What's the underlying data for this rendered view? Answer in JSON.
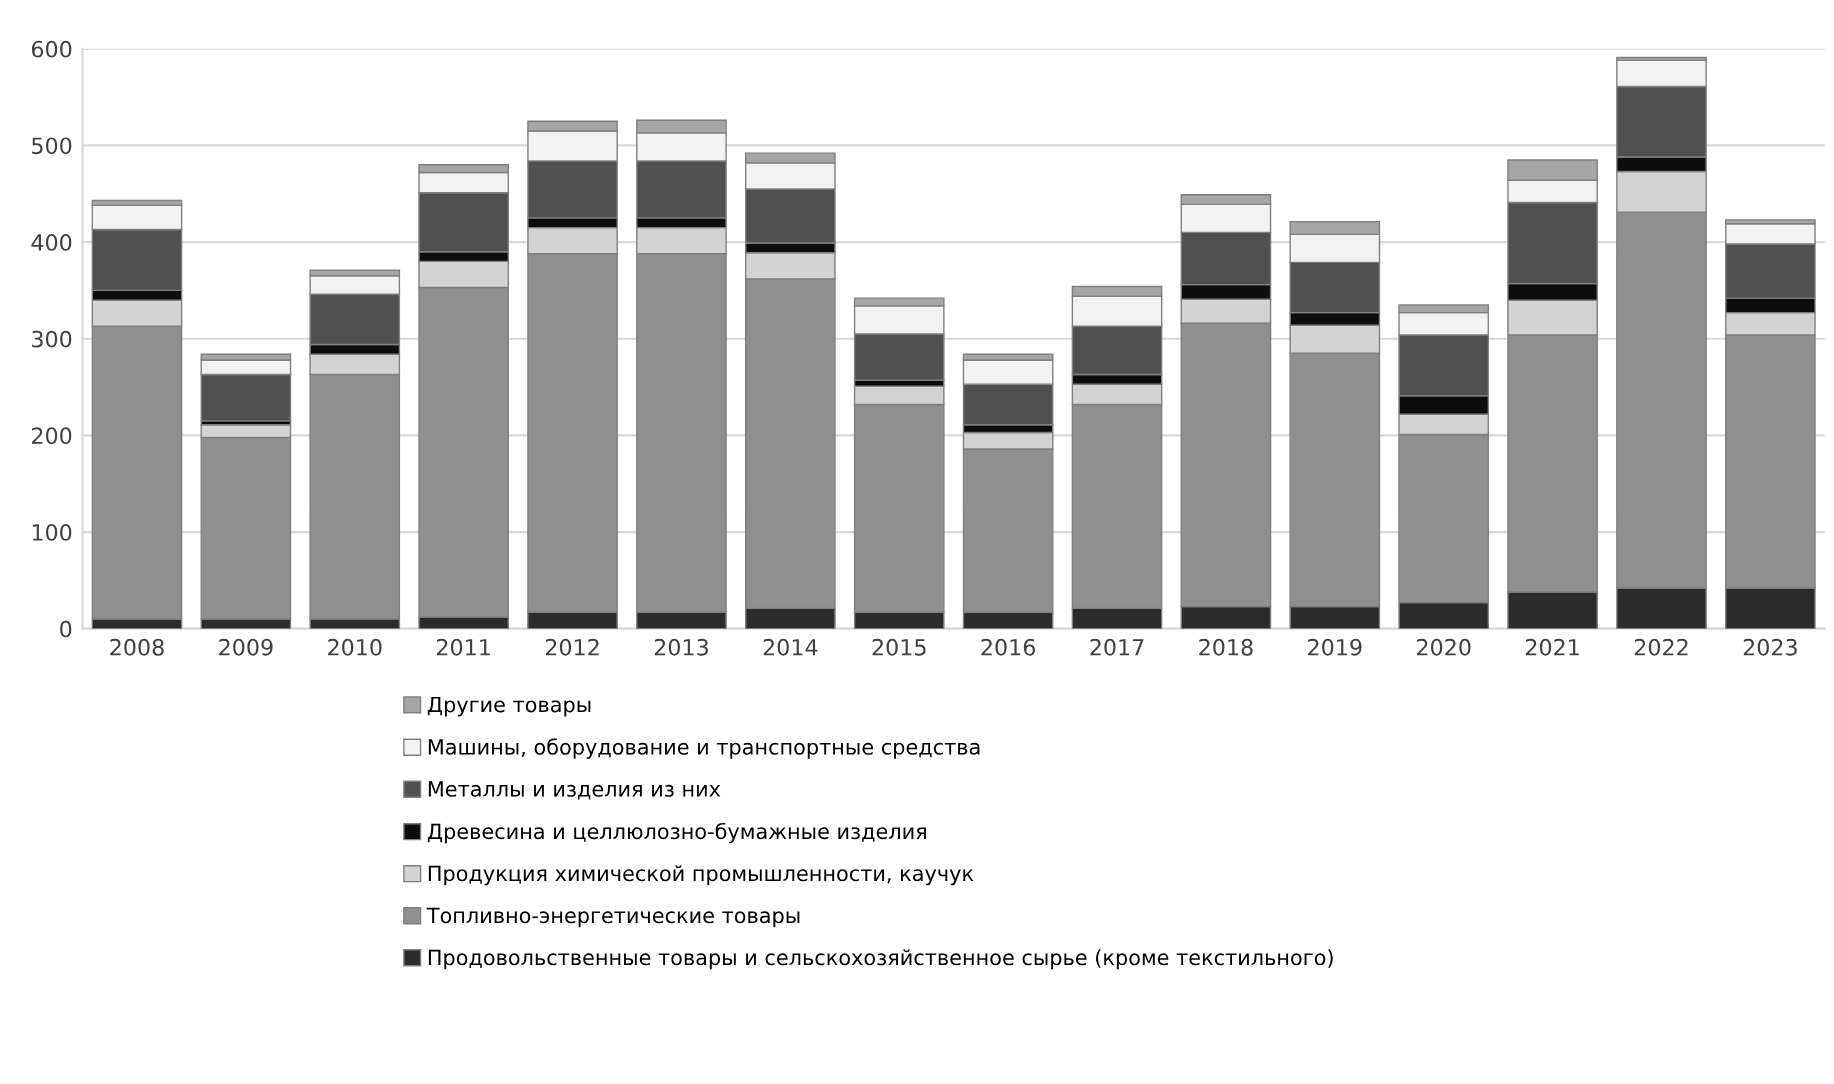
{
  "chart_data": {
    "type": "bar",
    "stacked": true,
    "categories": [
      "2008",
      "2009",
      "2010",
      "2011",
      "2012",
      "2013",
      "2014",
      "2015",
      "2016",
      "2017",
      "2018",
      "2019",
      "2020",
      "2021",
      "2022",
      "2023"
    ],
    "series": [
      {
        "name": "Продовольственные товары и сельскохозяйственное сырье (кроме текстильного)",
        "color": "#2b2b2b",
        "values": [
          10,
          10,
          10,
          12,
          17,
          17,
          21,
          17,
          17,
          21,
          23,
          23,
          27,
          38,
          42,
          42
        ]
      },
      {
        "name": "Топливно-энергетические товары",
        "color": "#8f8f8f",
        "values": [
          303,
          188,
          253,
          341,
          371,
          371,
          341,
          215,
          169,
          211,
          293,
          262,
          174,
          266,
          389,
          262
        ]
      },
      {
        "name": "Продукция химической промышленности, каучук",
        "color": "#d3d3d3",
        "values": [
          27,
          13,
          21,
          27,
          27,
          27,
          27,
          19,
          17,
          21,
          25,
          29,
          21,
          36,
          42,
          23
        ]
      },
      {
        "name": "Древесина и целлюлозно-бумажные изделия",
        "color": "#0d0d0d",
        "values": [
          10,
          4,
          10,
          10,
          10,
          10,
          10,
          6,
          8,
          10,
          15,
          13,
          19,
          17,
          15,
          15
        ]
      },
      {
        "name": "Металлы и изделия из них",
        "color": "#505050",
        "values": [
          63,
          48,
          52,
          61,
          59,
          59,
          56,
          48,
          42,
          50,
          54,
          52,
          63,
          84,
          73,
          56
        ]
      },
      {
        "name": "Машины, оборудование и транспортные средства",
        "color": "#f2f2f2",
        "values": [
          25,
          15,
          19,
          21,
          31,
          29,
          27,
          29,
          25,
          31,
          29,
          29,
          23,
          23,
          27,
          21
        ]
      },
      {
        "name": "Другие товары",
        "color": "#a6a6a6",
        "values": [
          5,
          6,
          6,
          8,
          10,
          13,
          10,
          8,
          6,
          10,
          10,
          13,
          8,
          21,
          3,
          4
        ]
      }
    ],
    "ylim": [
      0,
      600
    ],
    "yticks": [
      0,
      100,
      200,
      300,
      400,
      500,
      600
    ],
    "grid": "y",
    "legend": "bottom"
  }
}
